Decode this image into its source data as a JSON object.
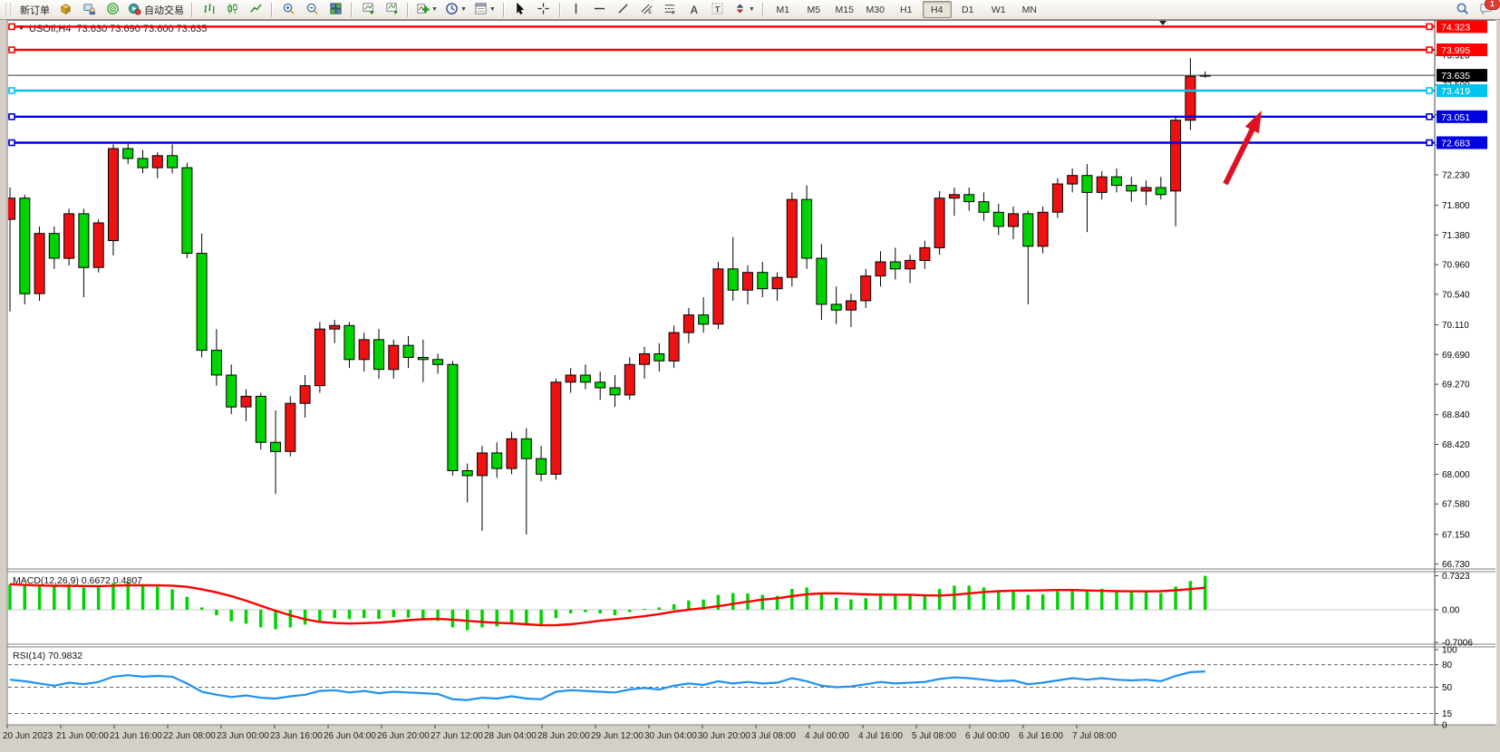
{
  "toolbar": {
    "groups": [
      {
        "items": [
          {
            "name": "new-order-button",
            "icon": "new-order-icon",
            "label": "新订单"
          },
          {
            "name": "order-cube-button",
            "icon": "order-cube-icon"
          },
          {
            "name": "expert-advisor-button",
            "icon": "expert-advisor-icon"
          },
          {
            "name": "signals-button",
            "icon": "signals-icon"
          },
          {
            "name": "autotrade-button",
            "icon": "autotrade-icon",
            "label": "自动交易"
          }
        ]
      },
      {
        "items": [
          {
            "name": "bar-chart-button",
            "icon": "bar-chart-icon"
          },
          {
            "name": "candlestick-chart-button",
            "icon": "candlestick-chart-icon"
          },
          {
            "name": "line-chart-button",
            "icon": "line-chart-icon"
          }
        ]
      },
      {
        "items": [
          {
            "name": "zoom-in-button",
            "icon": "zoom-in-icon"
          },
          {
            "name": "zoom-out-button",
            "icon": "zoom-out-icon"
          },
          {
            "name": "tile-windows-button",
            "icon": "tile-windows-icon"
          }
        ]
      },
      {
        "items": [
          {
            "name": "arrange-charts-button",
            "icon": "arrange-charts-icon"
          },
          {
            "name": "arrange-charts-2-button",
            "icon": "arrange-charts-2-icon"
          }
        ]
      },
      {
        "items": [
          {
            "name": "add-indicator-button",
            "icon": "add-indicator-icon",
            "dropdown": true
          },
          {
            "name": "period-clock-button",
            "icon": "period-clock-icon",
            "dropdown": true
          },
          {
            "name": "template-button",
            "icon": "template-icon",
            "dropdown": true
          }
        ]
      },
      {
        "items": [
          {
            "name": "cursor-button",
            "icon": "cursor-icon"
          },
          {
            "name": "crosshair-button",
            "icon": "crosshair-icon"
          }
        ]
      },
      {
        "items": [
          {
            "name": "vertical-line-button",
            "icon": "vertical-line-icon"
          },
          {
            "name": "horizontal-line-button",
            "icon": "horizontal-line-icon"
          },
          {
            "name": "trendline-button",
            "icon": "trendline-icon"
          },
          {
            "name": "channel-button",
            "icon": "channel-icon"
          },
          {
            "name": "fibonacci-button",
            "icon": "fibonacci-icon"
          },
          {
            "name": "text-button",
            "icon": "text-icon"
          },
          {
            "name": "label-button",
            "icon": "label-icon"
          },
          {
            "name": "arrows-button",
            "icon": "arrows-icon",
            "dropdown": true
          }
        ]
      }
    ],
    "timeframes": {
      "items": [
        "M1",
        "M5",
        "M15",
        "M30",
        "H1",
        "H4",
        "D1",
        "W1",
        "MN"
      ],
      "active": "H4"
    },
    "right": {
      "search_name": "search-icon",
      "chat_name": "chat-icon",
      "chat_badge": "1"
    }
  },
  "chart": {
    "title": {
      "marker": "▼",
      "symbol": "USOIl",
      "period": "H4",
      "open": "73.630",
      "high": "73.690",
      "low": "73.600",
      "close": "73.635"
    }
  },
  "chart_data": {
    "type": "candlestick",
    "symbol": "USOIl",
    "timeframe": "H4",
    "colors": {
      "bull": "#ee1111",
      "bear": "#00d400",
      "wick": "#000000",
      "macd_histogram": "#00d400",
      "macd_signal": "#ff0000",
      "rsi_line": "#2090f0",
      "background": "#ffffff",
      "pane_border": "#7f7f7f",
      "arrow": "#dd1122"
    },
    "price_ticks": [
      "73.920",
      "73.500",
      "73.080",
      "72.650",
      "72.230",
      "71.800",
      "71.380",
      "70.960",
      "70.540",
      "70.110",
      "69.690",
      "69.270",
      "68.840",
      "68.420",
      "68.000",
      "67.580",
      "67.150",
      "66.730"
    ],
    "time_labels": [
      "20 Jun 2023",
      "21 Jun 00:00",
      "21 Jun 16:00",
      "22 Jun 08:00",
      "23 Jun 00:00",
      "23 Jun 16:00",
      "26 Jun 04:00",
      "26 Jun 20:00",
      "27 Jun 12:00",
      "28 Jun 04:00",
      "28 Jun 20:00",
      "29 Jun 12:00",
      "30 Jun 04:00",
      "30 Jun 20:00",
      "3 Jul 08:00",
      "4 Jul 00:00",
      "4 Jul 16:00",
      "5 Jul 08:00",
      "6 Jul 00:00",
      "6 Jul 16:00",
      "7 Jul 08:00"
    ],
    "hlines": [
      {
        "label": "74.323",
        "price": 74.323,
        "color": "#ff0000"
      },
      {
        "label": "73.995",
        "price": 73.995,
        "color": "#ff0000"
      },
      {
        "label": "73.419",
        "price": 73.419,
        "color": "#00c3f0"
      },
      {
        "label": "73.051",
        "price": 73.051,
        "color": "#0000e0"
      },
      {
        "label": "72.683",
        "price": 72.683,
        "color": "#0000e0"
      }
    ],
    "current_price": {
      "label": "73.635",
      "price": 73.635,
      "line_color": "#333333",
      "badge_color": "#000000"
    },
    "ohlc": [
      [
        71.6,
        72.05,
        70.3,
        71.9
      ],
      [
        71.9,
        71.95,
        70.4,
        70.55
      ],
      [
        70.55,
        71.5,
        70.45,
        71.4
      ],
      [
        71.4,
        71.5,
        70.9,
        71.05
      ],
      [
        71.05,
        71.75,
        70.95,
        71.68
      ],
      [
        71.68,
        71.75,
        70.5,
        70.92
      ],
      [
        70.92,
        71.6,
        70.85,
        71.55
      ],
      [
        71.3,
        72.66,
        71.09,
        72.6
      ],
      [
        72.6,
        72.68,
        72.38,
        72.46
      ],
      [
        72.46,
        72.58,
        72.25,
        72.33
      ],
      [
        72.33,
        72.55,
        72.18,
        72.5
      ],
      [
        72.5,
        72.66,
        72.25,
        72.33
      ],
      [
        72.33,
        72.4,
        71.05,
        71.12
      ],
      [
        71.12,
        71.4,
        69.65,
        69.75
      ],
      [
        69.75,
        70.05,
        69.25,
        69.4
      ],
      [
        69.4,
        69.55,
        68.85,
        68.95
      ],
      [
        68.95,
        69.2,
        68.75,
        69.1
      ],
      [
        69.1,
        69.15,
        68.35,
        68.45
      ],
      [
        68.45,
        68.9,
        67.72,
        68.32
      ],
      [
        68.32,
        69.1,
        68.25,
        69.0
      ],
      [
        69.0,
        69.4,
        68.8,
        69.25
      ],
      [
        69.25,
        70.15,
        69.15,
        70.05
      ],
      [
        70.05,
        70.18,
        69.85,
        70.1
      ],
      [
        70.1,
        70.15,
        69.5,
        69.62
      ],
      [
        69.62,
        70.0,
        69.45,
        69.9
      ],
      [
        69.9,
        70.05,
        69.35,
        69.48
      ],
      [
        69.48,
        69.9,
        69.35,
        69.82
      ],
      [
        69.82,
        69.95,
        69.5,
        69.65
      ],
      [
        69.65,
        69.9,
        69.3,
        69.62
      ],
      [
        69.62,
        69.7,
        69.42,
        69.55
      ],
      [
        69.55,
        69.6,
        67.98,
        68.05
      ],
      [
        68.05,
        68.15,
        67.6,
        67.98
      ],
      [
        67.98,
        68.4,
        67.2,
        68.3
      ],
      [
        68.3,
        68.45,
        67.95,
        68.08
      ],
      [
        68.08,
        68.6,
        68.0,
        68.5
      ],
      [
        68.5,
        68.65,
        67.15,
        68.22
      ],
      [
        68.22,
        68.4,
        67.9,
        68.0
      ],
      [
        68.0,
        69.35,
        67.92,
        69.3
      ],
      [
        69.3,
        69.5,
        69.15,
        69.4
      ],
      [
        69.4,
        69.55,
        69.2,
        69.3
      ],
      [
        69.3,
        69.45,
        69.05,
        69.22
      ],
      [
        69.22,
        69.4,
        68.95,
        69.12
      ],
      [
        69.12,
        69.65,
        69.05,
        69.55
      ],
      [
        69.55,
        69.8,
        69.35,
        69.7
      ],
      [
        69.7,
        69.85,
        69.45,
        69.6
      ],
      [
        69.6,
        70.1,
        69.5,
        70.0
      ],
      [
        70.0,
        70.35,
        69.85,
        70.25
      ],
      [
        70.25,
        70.5,
        70.0,
        70.12
      ],
      [
        70.12,
        71.0,
        70.05,
        70.9
      ],
      [
        70.9,
        71.35,
        70.45,
        70.6
      ],
      [
        70.6,
        70.95,
        70.4,
        70.85
      ],
      [
        70.85,
        71.0,
        70.5,
        70.62
      ],
      [
        70.62,
        70.85,
        70.45,
        70.78
      ],
      [
        70.78,
        71.98,
        70.65,
        71.88
      ],
      [
        71.88,
        72.08,
        70.9,
        71.05
      ],
      [
        71.05,
        71.25,
        70.18,
        70.4
      ],
      [
        70.4,
        70.65,
        70.12,
        70.32
      ],
      [
        70.32,
        70.55,
        70.08,
        70.45
      ],
      [
        70.45,
        70.9,
        70.35,
        70.8
      ],
      [
        70.8,
        71.15,
        70.65,
        71.0
      ],
      [
        71.0,
        71.2,
        70.75,
        70.9
      ],
      [
        70.9,
        71.1,
        70.7,
        71.02
      ],
      [
        71.02,
        71.3,
        70.9,
        71.2
      ],
      [
        71.2,
        72.0,
        71.1,
        71.9
      ],
      [
        71.9,
        72.05,
        71.65,
        71.95
      ],
      [
        71.95,
        72.05,
        71.72,
        71.85
      ],
      [
        71.85,
        71.98,
        71.58,
        71.7
      ],
      [
        71.7,
        71.82,
        71.38,
        71.5
      ],
      [
        71.5,
        71.78,
        71.32,
        71.68
      ],
      [
        71.68,
        71.72,
        70.4,
        71.22
      ],
      [
        71.22,
        71.78,
        71.12,
        71.7
      ],
      [
        71.7,
        72.18,
        71.62,
        72.1
      ],
      [
        72.1,
        72.32,
        71.98,
        72.22
      ],
      [
        72.22,
        72.38,
        71.42,
        71.98
      ],
      [
        71.98,
        72.28,
        71.88,
        72.2
      ],
      [
        72.2,
        72.32,
        71.98,
        72.08
      ],
      [
        72.08,
        72.2,
        71.85,
        72.0
      ],
      [
        72.0,
        72.15,
        71.8,
        72.05
      ],
      [
        72.05,
        72.2,
        71.88,
        71.95
      ],
      [
        72.0,
        73.05,
        71.5,
        73.0
      ],
      [
        73.0,
        73.88,
        72.86,
        73.62
      ],
      [
        73.63,
        73.69,
        73.6,
        73.635
      ]
    ],
    "macd": {
      "label": "MACD(12,26,9)",
      "main_value": "0.6672",
      "signal_value": "0.4807",
      "axis_ticks": [
        "0.7323",
        "0.00",
        "-0.7006"
      ],
      "axis_max": 0.7323,
      "axis_min": -0.7006,
      "histogram": [
        0.55,
        0.52,
        0.5,
        0.5,
        0.52,
        0.48,
        0.5,
        0.58,
        0.6,
        0.55,
        0.5,
        0.44,
        0.28,
        0.05,
        -0.12,
        -0.25,
        -0.3,
        -0.38,
        -0.42,
        -0.38,
        -0.32,
        -0.24,
        -0.18,
        -0.2,
        -0.18,
        -0.2,
        -0.16,
        -0.17,
        -0.2,
        -0.24,
        -0.38,
        -0.44,
        -0.38,
        -0.36,
        -0.3,
        -0.34,
        -0.36,
        -0.18,
        -0.08,
        -0.05,
        -0.08,
        -0.12,
        -0.05,
        0.02,
        0.05,
        0.12,
        0.2,
        0.22,
        0.32,
        0.36,
        0.35,
        0.32,
        0.3,
        0.45,
        0.48,
        0.36,
        0.26,
        0.22,
        0.25,
        0.3,
        0.3,
        0.3,
        0.32,
        0.45,
        0.52,
        0.52,
        0.48,
        0.42,
        0.4,
        0.32,
        0.33,
        0.4,
        0.45,
        0.42,
        0.45,
        0.42,
        0.4,
        0.38,
        0.36,
        0.5,
        0.62,
        0.73
      ]
    },
    "rsi": {
      "label": "RSI(14)",
      "value": "70.9832",
      "axis_ticks": [
        "100",
        "80",
        "50",
        "15",
        "0"
      ],
      "levels": [
        80,
        50,
        15
      ],
      "values": [
        60,
        58,
        55,
        52,
        56,
        54,
        57,
        64,
        66,
        64,
        65,
        64,
        55,
        44,
        40,
        37,
        39,
        36,
        35,
        38,
        40,
        45,
        46,
        43,
        45,
        42,
        44,
        43,
        42,
        41,
        34,
        33,
        36,
        35,
        38,
        35,
        34,
        44,
        46,
        45,
        44,
        43,
        47,
        49,
        47,
        52,
        55,
        53,
        58,
        55,
        57,
        55,
        56,
        62,
        58,
        52,
        50,
        51,
        54,
        57,
        55,
        56,
        57,
        61,
        63,
        62,
        60,
        58,
        59,
        54,
        56,
        59,
        62,
        60,
        62,
        60,
        59,
        60,
        58,
        65,
        70,
        71
      ]
    },
    "annotations": [
      {
        "type": "arrow",
        "from": [
          1352,
          203
        ],
        "to": [
          1392,
          122
        ],
        "color": "#dd1122"
      }
    ]
  }
}
